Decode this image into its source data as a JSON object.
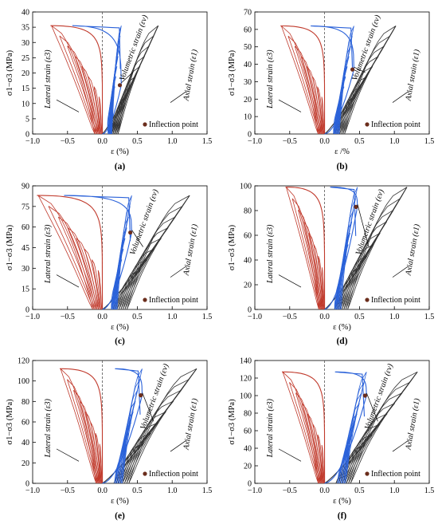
{
  "figure": {
    "background": "#ffffff"
  },
  "colors": {
    "lateral": "#c0392b",
    "axial": "#333333",
    "volumetric": "#2b62d9",
    "inflection": "#6b2d1c"
  },
  "chart_data": [
    {
      "panel": "(a)",
      "type": "line",
      "xlabel": "ε (%)",
      "ylabel": "σ1−σ3 (MPa)",
      "xlim": [
        -1.0,
        1.5
      ],
      "ylim": [
        0,
        40
      ],
      "xticks": [
        "−1.0",
        "−0.5",
        "0.0",
        "0.5",
        "1.0",
        "1.5"
      ],
      "yticks": [
        "0",
        "5",
        "10",
        "15",
        "20",
        "25",
        "30",
        "35",
        "40"
      ],
      "peak_stress": 35.5,
      "lateral_max": -0.73,
      "axial_max": 0.8,
      "vol_min": -0.43,
      "inflection": {
        "x": 0.25,
        "y": 16
      },
      "annotations": {
        "lateral": "Lateral strain (ε3)",
        "volumetric": "Volumetric strain (εv)",
        "axial": "Axial strain (ε1)"
      },
      "legend": "Inflection point"
    },
    {
      "panel": "(b)",
      "type": "line",
      "xlabel": "ε /%",
      "ylabel": "σ1−σ3 (MPa)",
      "xlim": [
        -1.0,
        1.5
      ],
      "ylim": [
        0,
        70
      ],
      "xticks": [
        "−1.0",
        "−0.5",
        "0.0",
        "0.5",
        "1.0",
        "1.5"
      ],
      "yticks": [
        "0",
        "10",
        "20",
        "30",
        "40",
        "50",
        "60",
        "70"
      ],
      "peak_stress": 62,
      "lateral_max": -0.62,
      "axial_max": 1.02,
      "vol_min": -0.2,
      "inflection": {
        "x": 0.4,
        "y": 37
      },
      "annotations": {
        "lateral": "Lateral strain (ε3)",
        "volumetric": "Volumetric strain (εv)",
        "axial": "Axial strain (ε1)"
      },
      "legend": "Inflection point"
    },
    {
      "panel": "(c)",
      "type": "line",
      "xlabel": "ε (%)",
      "ylabel": "σ1−σ3 (MPa)",
      "xlim": [
        -1.0,
        1.5
      ],
      "ylim": [
        0,
        90
      ],
      "xticks": [
        "−1.0",
        "−0.5",
        "0.0",
        "0.5",
        "1.0",
        "1.5"
      ],
      "yticks": [
        "0",
        "15",
        "30",
        "45",
        "60",
        "75",
        "90"
      ],
      "peak_stress": 83,
      "lateral_max": -0.92,
      "axial_max": 1.25,
      "vol_min": -0.55,
      "inflection": {
        "x": 0.4,
        "y": 56
      },
      "annotations": {
        "lateral": "Lateral strain (ε3)",
        "volumetric": "Volumetric strain (εv)",
        "axial": "Axial strain (ε1)"
      },
      "legend": "Inflection point"
    },
    {
      "panel": "(d)",
      "type": "line",
      "xlabel": "ε (%)",
      "ylabel": "σ1−σ3 (MPa)",
      "xlim": [
        -1.0,
        1.5
      ],
      "ylim": [
        0,
        100
      ],
      "xticks": [
        "−1.0",
        "−0.5",
        "0.0",
        "0.5",
        "1.0",
        "1.5"
      ],
      "yticks": [
        "0",
        "20",
        "40",
        "60",
        "80",
        "100"
      ],
      "peak_stress": 99,
      "lateral_max": -0.55,
      "axial_max": 1.18,
      "vol_min": 0.08,
      "inflection": {
        "x": 0.45,
        "y": 83
      },
      "annotations": {
        "lateral": "Lateral strain (ε3)",
        "volumetric": "Volumetric strain (εv)",
        "axial": "Axial strain (ε1)"
      },
      "legend": "Inflection point"
    },
    {
      "panel": "(e)",
      "type": "line",
      "xlabel": "ε (%)",
      "ylabel": "σ1−σ3 (MPa)",
      "xlim": [
        -1.0,
        1.5
      ],
      "ylim": [
        0,
        120
      ],
      "xticks": [
        "−1.0",
        "−0.5",
        "0.0",
        "0.5",
        "1.0",
        "1.5"
      ],
      "yticks": [
        "0",
        "20",
        "40",
        "60",
        "80",
        "100",
        "120"
      ],
      "peak_stress": 112,
      "lateral_max": -0.6,
      "axial_max": 1.35,
      "vol_min": 0.18,
      "inflection": {
        "x": 0.55,
        "y": 86
      },
      "annotations": {
        "lateral": "Lateral strain (ε3)",
        "volumetric": "Volumetric strain (εv)",
        "axial": "Axial strain (ε1)"
      },
      "legend": "Inflection point"
    },
    {
      "panel": "(f)",
      "type": "line",
      "xlabel": "ε (%)",
      "ylabel": "σ1−σ3 (MPa)",
      "xlim": [
        -1.0,
        1.5
      ],
      "ylim": [
        0,
        140
      ],
      "xticks": [
        "−1.0",
        "−0.5",
        "0.0",
        "0.5",
        "1.0",
        "1.5"
      ],
      "yticks": [
        "0",
        "20",
        "40",
        "60",
        "80",
        "100",
        "120",
        "140"
      ],
      "peak_stress": 127,
      "lateral_max": -0.6,
      "axial_max": 1.33,
      "vol_min": 0.15,
      "inflection": {
        "x": 0.58,
        "y": 100
      },
      "annotations": {
        "lateral": "Lateral strain (ε3)",
        "volumetric": "Volumetric strain (εv)",
        "axial": "Axial strain (ε1)"
      },
      "legend": "Inflection point"
    }
  ]
}
